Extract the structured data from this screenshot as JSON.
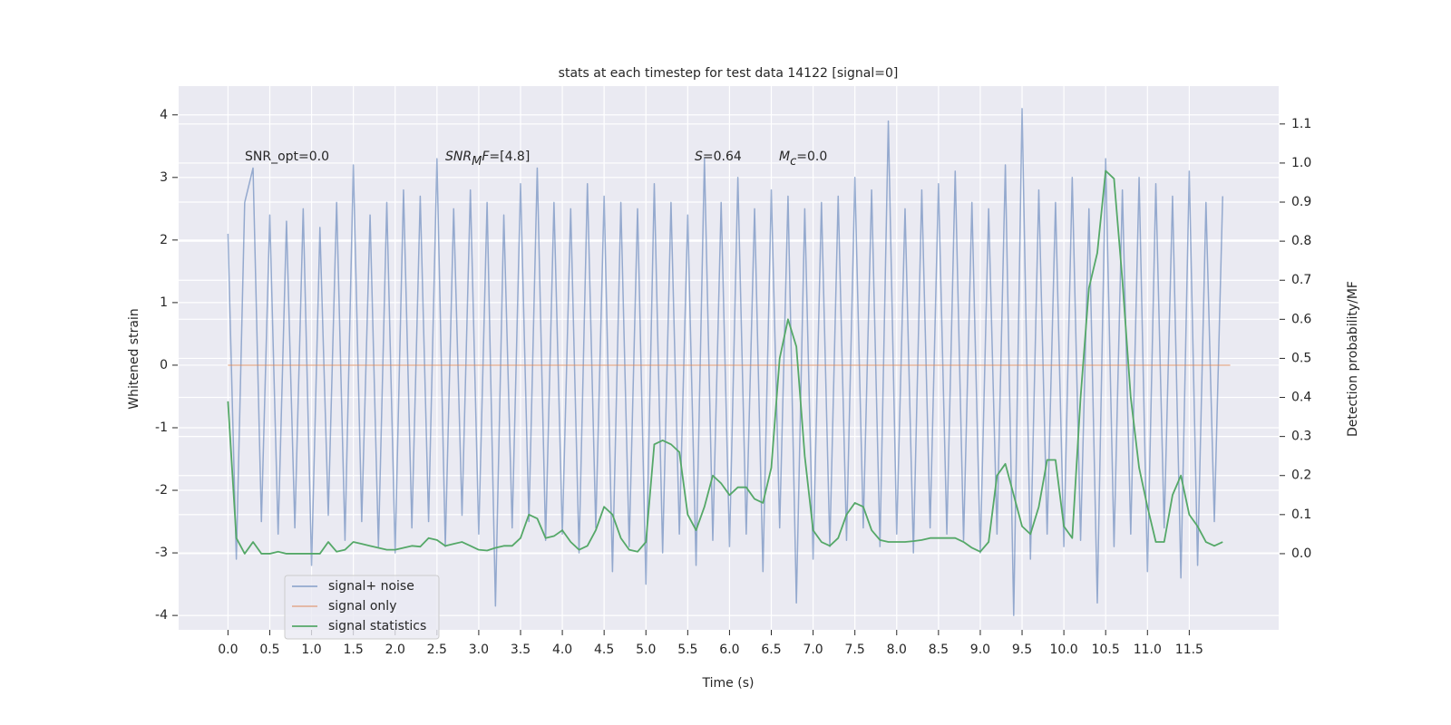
{
  "chart_data": {
    "type": "line",
    "title": "stats at each timestep for test data 14122 [signal=0]",
    "xlabel": "Time (s)",
    "ylabel": "Whitened strain",
    "y2label": "Detection probability/MF",
    "x": [
      0.0,
      0.1,
      0.2,
      0.3,
      0.4,
      0.5,
      0.6,
      0.7,
      0.8,
      0.9,
      1.0,
      1.1,
      1.2,
      1.3,
      1.4,
      1.5,
      1.6,
      1.7,
      1.8,
      1.9,
      2.0,
      2.1,
      2.2,
      2.3,
      2.4,
      2.5,
      2.6,
      2.7,
      2.8,
      2.9,
      3.0,
      3.1,
      3.2,
      3.3,
      3.4,
      3.5,
      3.6,
      3.7,
      3.8,
      3.9,
      4.0,
      4.1,
      4.2,
      4.3,
      4.4,
      4.5,
      4.6,
      4.7,
      4.8,
      4.9,
      5.0,
      5.1,
      5.2,
      5.3,
      5.4,
      5.5,
      5.6,
      5.7,
      5.8,
      5.9,
      6.0,
      6.1,
      6.2,
      6.3,
      6.4,
      6.5,
      6.6,
      6.7,
      6.8,
      6.9,
      7.0,
      7.1,
      7.2,
      7.3,
      7.4,
      7.5,
      7.6,
      7.7,
      7.8,
      7.9,
      8.0,
      8.1,
      8.2,
      8.3,
      8.4,
      8.5,
      8.6,
      8.7,
      8.8,
      8.9,
      9.0,
      9.1,
      9.2,
      9.3,
      9.4,
      9.5,
      9.6,
      9.7,
      9.8,
      9.9,
      10.0,
      10.1,
      10.2,
      10.3,
      10.4,
      10.5,
      10.6,
      10.7,
      10.8,
      10.9,
      11.0,
      11.1,
      11.2,
      11.3,
      11.4,
      11.5,
      11.6,
      11.7,
      11.8,
      11.9
    ],
    "series": [
      {
        "name": "signal+ noise",
        "color": "#4c72b0",
        "alpha": 0.55,
        "axis": "y",
        "values": [
          2.1,
          -3.1,
          2.6,
          3.15,
          -2.5,
          2.4,
          -2.7,
          2.3,
          -2.6,
          2.5,
          -3.2,
          2.2,
          -2.4,
          2.6,
          -2.8,
          3.2,
          -2.5,
          2.4,
          -2.9,
          2.6,
          -3.0,
          2.8,
          -2.6,
          2.7,
          -2.5,
          3.3,
          -2.9,
          2.5,
          -2.4,
          2.8,
          -2.7,
          2.6,
          -3.85,
          2.4,
          -2.6,
          2.9,
          -2.5,
          3.15,
          -2.8,
          2.6,
          -2.7,
          2.5,
          -3.0,
          2.9,
          -2.6,
          2.7,
          -3.3,
          2.6,
          -2.9,
          2.5,
          -3.5,
          2.9,
          -3.0,
          2.6,
          -2.7,
          2.4,
          -3.2,
          3.3,
          -2.8,
          2.6,
          -2.9,
          3.0,
          -2.7,
          2.5,
          -3.3,
          2.8,
          -2.6,
          2.7,
          -3.8,
          2.5,
          -3.1,
          2.6,
          -2.9,
          2.7,
          -2.8,
          3.0,
          -2.6,
          2.8,
          -2.9,
          3.9,
          -2.7,
          2.5,
          -3.0,
          2.8,
          -2.6,
          2.9,
          -2.7,
          3.1,
          -2.8,
          2.6,
          -3.0,
          2.5,
          -2.7,
          3.2,
          -4.0,
          4.1,
          -3.1,
          2.8,
          -2.7,
          2.6,
          -2.9,
          3.0,
          -2.8,
          2.5,
          -3.8,
          3.3,
          -2.9,
          2.8,
          -2.7,
          3.0,
          -3.3,
          2.9,
          -2.6,
          2.7,
          -3.4,
          3.1,
          -3.2,
          2.6,
          -2.5,
          2.7
        ]
      },
      {
        "name": "signal only",
        "color": "#dd8452",
        "alpha": 0.55,
        "axis": "y",
        "x": [
          0.0,
          11.99
        ],
        "values": [
          0,
          0
        ]
      },
      {
        "name": "signal statistics",
        "color": "#55a868",
        "alpha": 1,
        "axis": "y2",
        "values": [
          0.39,
          0.04,
          0.0,
          0.03,
          0.0,
          0.0,
          0.005,
          0.0,
          0.0,
          0.0,
          0.0,
          0.0,
          0.03,
          0.005,
          0.01,
          0.03,
          0.025,
          0.02,
          0.015,
          0.01,
          0.01,
          0.015,
          0.02,
          0.018,
          0.04,
          0.035,
          0.02,
          0.025,
          0.03,
          0.02,
          0.01,
          0.008,
          0.015,
          0.02,
          0.02,
          0.04,
          0.1,
          0.09,
          0.04,
          0.045,
          0.06,
          0.03,
          0.01,
          0.02,
          0.06,
          0.12,
          0.1,
          0.04,
          0.01,
          0.005,
          0.03,
          0.28,
          0.29,
          0.28,
          0.26,
          0.1,
          0.06,
          0.12,
          0.2,
          0.18,
          0.15,
          0.17,
          0.17,
          0.14,
          0.13,
          0.22,
          0.5,
          0.6,
          0.53,
          0.25,
          0.06,
          0.03,
          0.02,
          0.04,
          0.1,
          0.13,
          0.12,
          0.06,
          0.035,
          0.03,
          0.03,
          0.03,
          0.032,
          0.035,
          0.04,
          0.04,
          0.04,
          0.04,
          0.03,
          0.015,
          0.005,
          0.03,
          0.2,
          0.23,
          0.15,
          0.07,
          0.05,
          0.12,
          0.24,
          0.24,
          0.07,
          0.04,
          0.4,
          0.68,
          0.77,
          0.98,
          0.96,
          0.7,
          0.4,
          0.22,
          0.12,
          0.03,
          0.03,
          0.15,
          0.2,
          0.1,
          0.07,
          0.03,
          0.02,
          0.03
        ]
      }
    ],
    "xlim": [
      -0.59,
      12.57
    ],
    "xticks": [
      {
        "value": 0,
        "label": "0.0"
      },
      0.5,
      {
        "value": 1,
        "label": "1.0"
      },
      1.5,
      {
        "value": 2,
        "label": "2.0"
      },
      2.5,
      {
        "value": 3,
        "label": "3.0"
      },
      3.5,
      {
        "value": 4,
        "label": "4.0"
      },
      4.5,
      {
        "value": 5,
        "label": "5.0"
      },
      5.5,
      {
        "value": 6,
        "label": "6.0"
      },
      6.5,
      {
        "value": 7,
        "label": "7.0"
      },
      7.5,
      {
        "value": 8,
        "label": "8.0"
      },
      8.5,
      {
        "value": 9,
        "label": "9.0"
      },
      9.5,
      {
        "value": 10,
        "label": "10.0"
      },
      10.5,
      {
        "value": 11,
        "label": "11.0"
      },
      11.5
    ],
    "ylim": [
      -4.23,
      4.46
    ],
    "yticks": [
      -4,
      -3,
      -2,
      -1,
      0,
      1,
      2,
      3,
      4
    ],
    "y2lim": [
      -0.195,
      1.197
    ],
    "y2ticks": [
      {
        "value": 0,
        "label": "0.0"
      },
      0.1,
      0.2,
      0.3,
      0.4,
      0.5,
      0.6,
      0.7,
      0.8,
      0.9,
      {
        "value": 1,
        "label": "1.0"
      },
      1.1
    ],
    "grid": true,
    "legend": "lower left",
    "annotations": [
      {
        "parts": [
          {
            "text": "SNR_opt=0.0"
          }
        ]
      },
      {
        "parts": [
          {
            "text": "SNR",
            "italic": true
          },
          {
            "text": "M",
            "italic": true,
            "sub": true
          },
          {
            "text": "F",
            "italic": true
          },
          {
            "text": "=[4.8]"
          }
        ]
      },
      {
        "parts": [
          {
            "text": "S",
            "italic": true
          },
          {
            "text": "=0.64"
          }
        ]
      },
      {
        "parts": [
          {
            "text": "M",
            "italic": true
          },
          {
            "text": "c",
            "italic": true,
            "sub": true
          },
          {
            "text": "=0.0"
          }
        ]
      }
    ]
  }
}
